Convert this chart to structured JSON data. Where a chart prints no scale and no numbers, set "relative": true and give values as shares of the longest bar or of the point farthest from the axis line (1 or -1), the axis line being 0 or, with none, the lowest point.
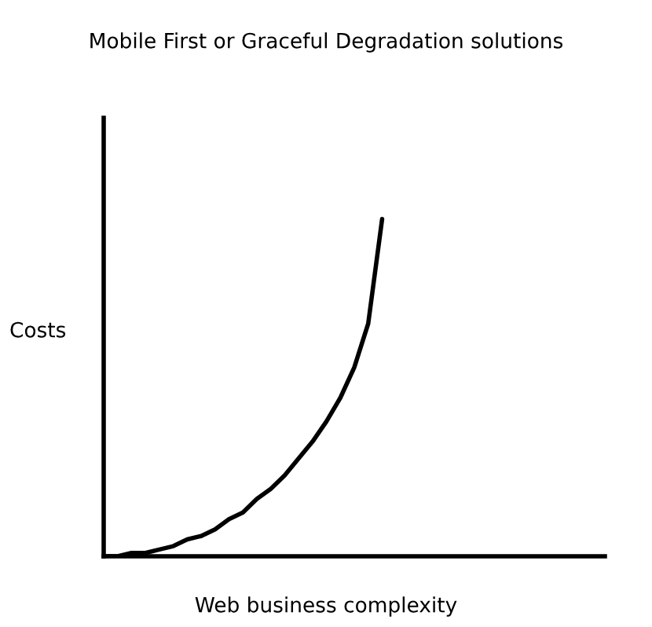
{
  "chart_data": {
    "type": "line",
    "title": "Mobile First or Graceful Degradation solutions",
    "xlabel": "Web business complexity",
    "ylabel": "Costs",
    "relative": true,
    "categories": [
      null,
      null,
      null,
      null,
      null,
      null,
      null,
      null,
      null,
      null,
      null,
      null,
      null,
      null,
      null,
      null,
      null,
      null,
      null,
      null,
      null,
      null,
      null,
      null,
      null,
      null,
      null,
      null,
      null,
      null,
      null,
      null,
      null,
      null,
      null,
      null,
      null
    ],
    "series": [
      {
        "color": "#000000",
        "values": [
          0,
          0,
          0.01,
          0.01,
          0.02,
          0.03,
          0.05,
          0.06,
          0.08,
          0.11,
          0.13,
          0.17,
          0.2,
          0.24,
          0.29,
          0.34,
          0.4,
          0.47,
          0.56,
          0.69,
          1,
          null,
          null,
          null,
          null,
          null,
          null,
          null,
          null,
          null,
          null,
          null,
          null,
          null,
          null,
          null,
          null
        ]
      }
    ]
  }
}
